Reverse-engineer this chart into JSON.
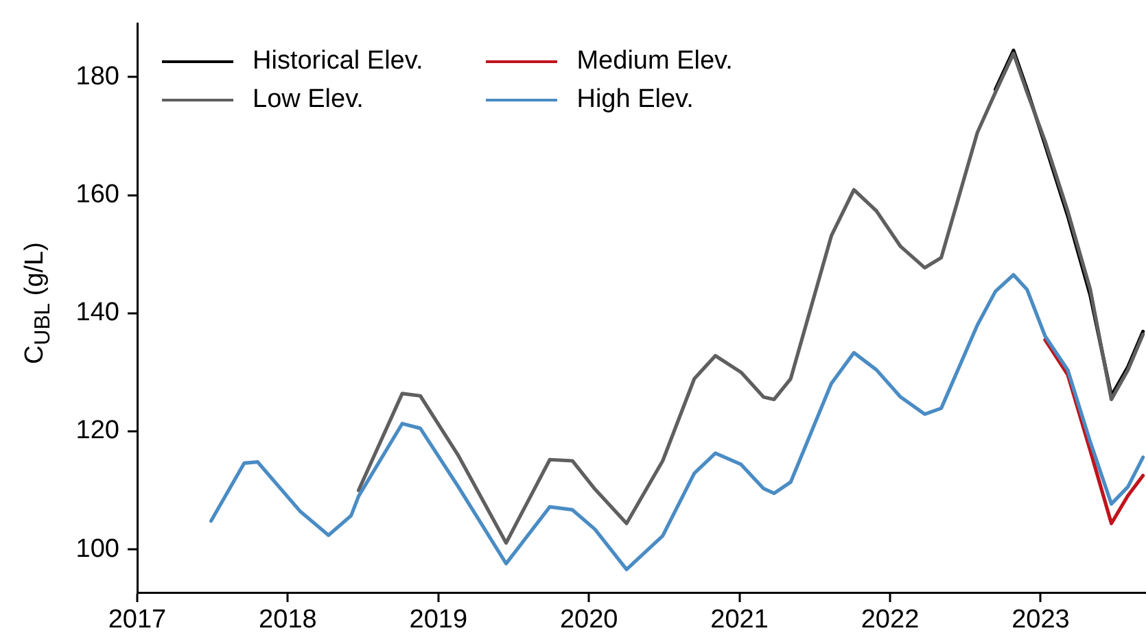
{
  "chart_data": {
    "type": "line",
    "ylabel": "C$_{UBL}$ (g/L)",
    "x": [
      2017.49,
      2017.71,
      2017.8,
      2018.08,
      2018.27,
      2018.42,
      2018.47,
      2018.76,
      2018.88,
      2019.13,
      2019.45,
      2019.74,
      2019.89,
      2020.04,
      2020.25,
      2020.49,
      2020.7,
      2020.84,
      2021.01,
      2021.16,
      2021.23,
      2021.34,
      2021.61,
      2021.76,
      2021.91,
      2022.07,
      2022.23,
      2022.34,
      2022.58,
      2022.7,
      2022.82,
      2022.91,
      2023.03,
      2023.18,
      2023.33,
      2023.47,
      2023.58,
      2023.68
    ],
    "series": [
      {
        "name": "Historical Elev.",
        "color": "#000000",
        "values": [
          null,
          null,
          null,
          null,
          null,
          null,
          null,
          null,
          null,
          null,
          null,
          null,
          null,
          null,
          null,
          null,
          null,
          null,
          null,
          null,
          null,
          null,
          null,
          null,
          null,
          null,
          null,
          null,
          null,
          177.9,
          184.5,
          177.9,
          168.5,
          156.5,
          143,
          126,
          130.9,
          136.9
        ]
      },
      {
        "name": "Low Elev.",
        "color": "#5f5f5f",
        "values": [
          null,
          null,
          null,
          null,
          null,
          null,
          110,
          126.4,
          126,
          116,
          101.1,
          115.2,
          115,
          110.2,
          104.4,
          115,
          128.9,
          132.8,
          130,
          125.8,
          125.4,
          128.9,
          153.1,
          160.9,
          157.3,
          151.3,
          147.7,
          149.4,
          170.6,
          177.4,
          184,
          177.4,
          169.1,
          157.3,
          144,
          125.4,
          130.4,
          136.4
        ]
      },
      {
        "name": "Medium Elev.",
        "color": "#c0141c",
        "values": [
          null,
          null,
          null,
          null,
          null,
          null,
          null,
          null,
          null,
          null,
          null,
          null,
          null,
          null,
          null,
          null,
          null,
          null,
          null,
          null,
          null,
          null,
          null,
          null,
          null,
          null,
          null,
          null,
          null,
          null,
          null,
          null,
          135.5,
          129.6,
          116.7,
          104.4,
          109.1,
          112.5
        ]
      },
      {
        "name": "High Elev.",
        "color": "#4a8cc4",
        "values": [
          104.8,
          114.6,
          114.8,
          106.5,
          102.4,
          105.7,
          109,
          121.3,
          120.5,
          110.7,
          97.6,
          107.2,
          106.7,
          103.4,
          96.6,
          102.3,
          112.9,
          116.3,
          114.4,
          110.3,
          109.5,
          111.4,
          128.1,
          133.3,
          130.4,
          125.8,
          122.9,
          123.9,
          138,
          143.7,
          146.5,
          144,
          136.1,
          130.4,
          118.2,
          107.7,
          110.6,
          115.6
        ]
      }
    ],
    "xlim": [
      2017,
      2023.7
    ],
    "xticks": [
      2017,
      2018,
      2019,
      2020,
      2021,
      2022,
      2023
    ],
    "ylim": [
      92.7,
      189
    ],
    "yticks": [
      100,
      120,
      140,
      160,
      180
    ],
    "grid": false,
    "legend": "top left",
    "marker": "none",
    "line_style": "solid"
  }
}
